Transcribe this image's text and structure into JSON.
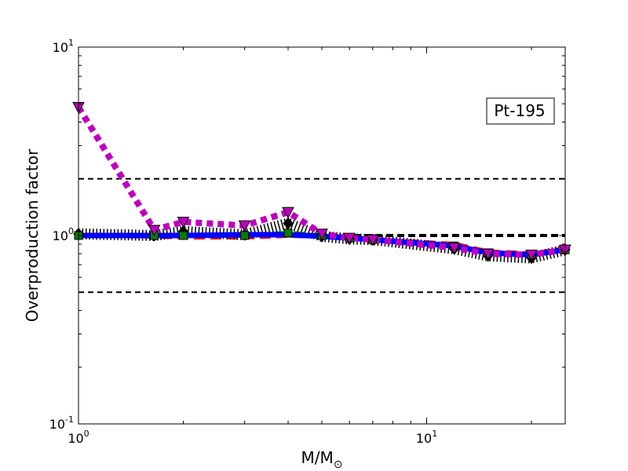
{
  "chart_data": {
    "type": "line",
    "title": "",
    "annotation": "Pt-195",
    "xlabel": "M/M",
    "xlabel_subscript": "⊙",
    "ylabel": "Overproduction factor",
    "xscale": "log",
    "yscale": "log",
    "xlim": [
      1,
      25
    ],
    "ylim": [
      0.1,
      10
    ],
    "x_ticks": [
      {
        "value": 1,
        "base": "10",
        "exp": "0"
      },
      {
        "value": 10,
        "base": "10",
        "exp": "1"
      }
    ],
    "y_ticks": [
      {
        "value": 0.1,
        "base": "10",
        "exp": "-1"
      },
      {
        "value": 1,
        "base": "10",
        "exp": "0"
      },
      {
        "value": 10,
        "base": "10",
        "exp": "1"
      }
    ],
    "reference_lines": [
      {
        "y": 2.0,
        "color": "#000000",
        "style": "dashed",
        "width": 2
      },
      {
        "y": 1.0,
        "color": "#000000",
        "style": "dashed",
        "width": 4
      },
      {
        "y": 0.5,
        "color": "#000000",
        "style": "dashed",
        "width": 2
      }
    ],
    "series": [
      {
        "color": "#ff0000",
        "style": "dashed",
        "marker": "none",
        "x": [
          1,
          1.65,
          2,
          3,
          4,
          5,
          6,
          7,
          12,
          15,
          20,
          25
        ],
        "y": [
          1.0,
          0.99,
          0.98,
          0.98,
          1.0,
          0.99,
          0.97,
          0.95,
          0.9,
          0.82,
          0.8,
          0.85
        ]
      },
      {
        "color": "#000000",
        "style": "dotted",
        "marker": "diamond",
        "x": [
          1,
          1.65,
          2,
          3,
          4,
          5,
          6,
          7,
          12,
          15,
          20,
          25
        ],
        "y": [
          1.02,
          1.0,
          1.05,
          1.01,
          1.16,
          0.99,
          0.96,
          0.95,
          0.85,
          0.78,
          0.76,
          0.84
        ]
      },
      {
        "color": "#008000",
        "style": "dashdot",
        "marker": "square",
        "x": [
          1,
          1.65,
          2,
          3,
          4,
          5,
          6,
          7,
          12,
          15,
          20,
          25
        ],
        "y": [
          1.0,
          1.0,
          1.0,
          1.0,
          1.03,
          1.0,
          0.97,
          0.95,
          0.88,
          0.81,
          0.79,
          0.84
        ]
      },
      {
        "color": "#0000ff",
        "style": "solid",
        "marker": "none",
        "x": [
          1,
          1.65,
          2,
          3,
          4,
          5,
          6,
          7,
          12,
          15,
          20,
          25
        ],
        "y": [
          1.0,
          1.0,
          1.0,
          1.01,
          1.01,
          0.99,
          0.97,
          0.95,
          0.88,
          0.81,
          0.79,
          0.84
        ]
      },
      {
        "color": "#bf00bf",
        "style": "dotted",
        "marker": "triangle-down",
        "x": [
          1,
          1.65,
          2,
          3,
          4,
          5,
          6,
          7,
          12,
          15,
          20,
          25
        ],
        "y": [
          4.8,
          1.07,
          1.18,
          1.13,
          1.33,
          1.02,
          0.97,
          0.95,
          0.86,
          0.8,
          0.79,
          0.84
        ]
      }
    ]
  }
}
